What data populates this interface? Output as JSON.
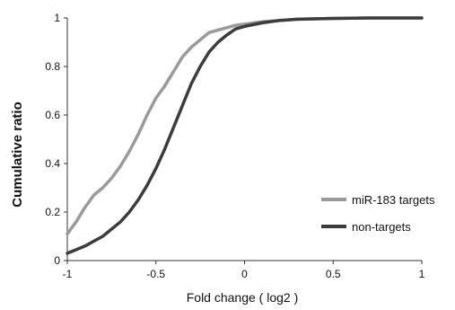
{
  "chart_data": {
    "type": "line",
    "title": "",
    "xlabel": "Fold change ( log2 )",
    "ylabel": "Cumulative ratio",
    "xlim": [
      -1,
      1
    ],
    "ylim": [
      0,
      1
    ],
    "x_ticks": [
      "-1",
      "-0.5",
      "0",
      "0.5",
      "1"
    ],
    "y_ticks": [
      "0",
      "0.2",
      "0.4",
      "0.6",
      "0.8",
      "1"
    ],
    "grid": false,
    "legend_position": "lower-right",
    "series": [
      {
        "name": "miR-183 targets",
        "color": "#9a9a9a",
        "x": [
          -1.0,
          -0.95,
          -0.9,
          -0.85,
          -0.8,
          -0.75,
          -0.7,
          -0.65,
          -0.6,
          -0.55,
          -0.5,
          -0.45,
          -0.4,
          -0.35,
          -0.3,
          -0.25,
          -0.2,
          -0.15,
          -0.1,
          -0.05,
          0.0,
          0.1,
          0.2,
          0.3,
          0.5,
          0.7,
          1.0
        ],
        "y": [
          0.11,
          0.16,
          0.22,
          0.27,
          0.3,
          0.34,
          0.39,
          0.45,
          0.52,
          0.6,
          0.67,
          0.72,
          0.78,
          0.84,
          0.88,
          0.91,
          0.94,
          0.95,
          0.96,
          0.97,
          0.975,
          0.985,
          0.99,
          0.995,
          0.998,
          1.0,
          1.0
        ]
      },
      {
        "name": "non-targets",
        "color": "#3c3c3c",
        "x": [
          -1.0,
          -0.95,
          -0.9,
          -0.85,
          -0.8,
          -0.75,
          -0.7,
          -0.65,
          -0.6,
          -0.55,
          -0.5,
          -0.45,
          -0.4,
          -0.35,
          -0.3,
          -0.25,
          -0.2,
          -0.15,
          -0.1,
          -0.05,
          0.0,
          0.1,
          0.2,
          0.3,
          0.5,
          0.7,
          1.0
        ],
        "y": [
          0.03,
          0.045,
          0.06,
          0.08,
          0.1,
          0.13,
          0.16,
          0.2,
          0.25,
          0.31,
          0.38,
          0.46,
          0.55,
          0.64,
          0.73,
          0.8,
          0.86,
          0.9,
          0.93,
          0.955,
          0.965,
          0.98,
          0.99,
          0.995,
          0.998,
          1.0,
          1.0
        ]
      }
    ]
  }
}
